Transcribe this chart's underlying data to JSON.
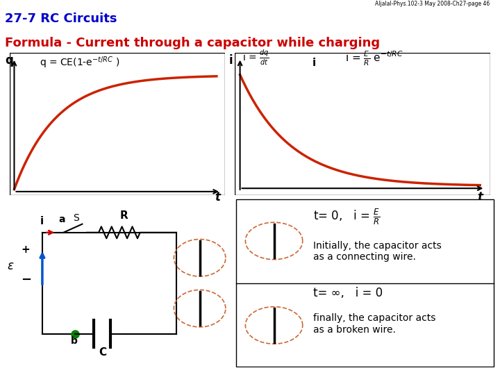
{
  "title_line1": "27-7 RC Circuits",
  "title_line2": "Formula - Current through a capacitor while charging",
  "header_note": "Aljalal-Phys.102-3 May 2008-Ch27-page 46",
  "bg_color": "#ffffff",
  "curve_color": "#cc2200",
  "box1_text": "Initially, the capacitor acts\nas a connecting wire.",
  "box2_tinf": "t= ∞,   i = 0",
  "box2_text": "finally, the capacitor acts\nas a broken wire.",
  "label_q": "q",
  "label_t1": "t",
  "label_i": "i",
  "label_t2": "t",
  "circuit_label_i": "i",
  "circuit_label_a": "a",
  "circuit_label_S": "S",
  "circuit_label_R": "R",
  "circuit_label_b": "b",
  "circuit_label_plus": "+",
  "circuit_label_minus": "−",
  "circuit_label_E": "ε",
  "circuit_label_C": "C"
}
